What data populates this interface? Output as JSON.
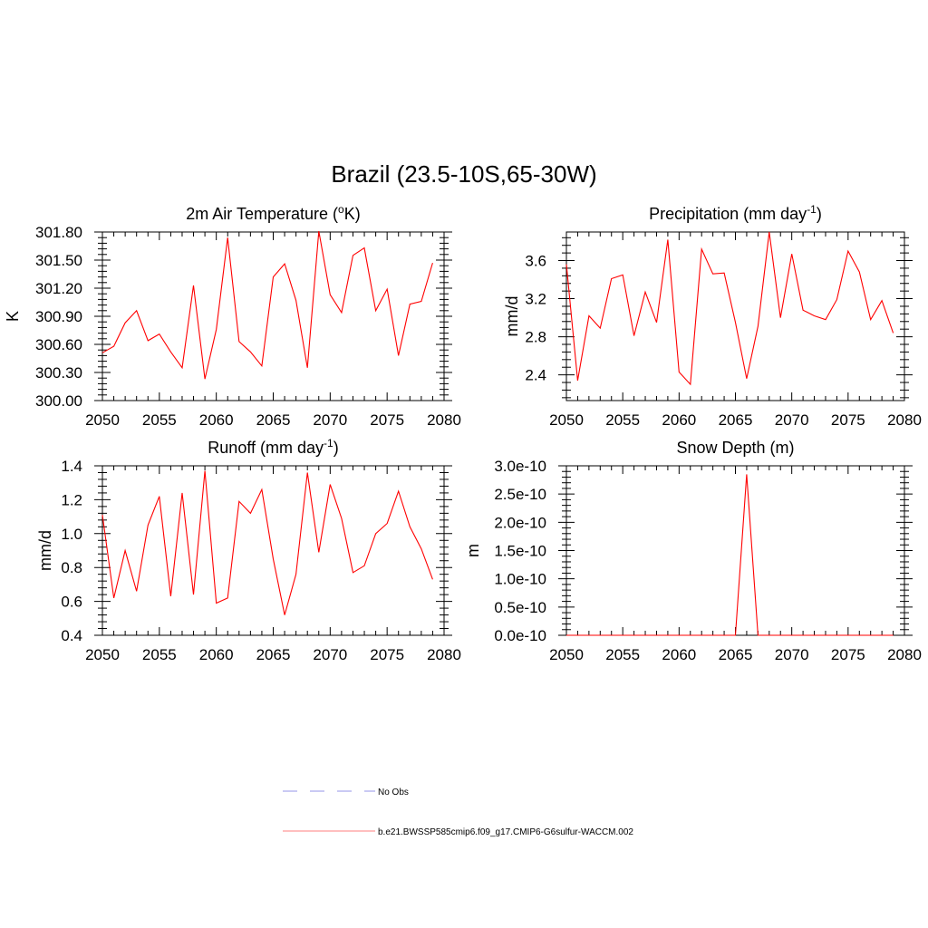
{
  "figure": {
    "title": "Brazil (23.5-10S,65-30W)"
  },
  "legend": {
    "entries": [
      {
        "label": "No Obs",
        "color": "#aaaaee",
        "style": "dashed"
      },
      {
        "label": "b.e21.BWSSP585cmip6.f09_g17.CMIP6-G6sulfur-WACCM.002",
        "color": "#ff9999",
        "style": "solid"
      }
    ]
  },
  "chart_data": [
    {
      "type": "line",
      "title_base": "2m Air Temperature (",
      "title_sup": "o",
      "title_end": "K)",
      "ylabel": "K",
      "xlim": [
        2050,
        2080
      ],
      "ylim": [
        300.0,
        301.8
      ],
      "xticks": [
        2050,
        2055,
        2060,
        2065,
        2070,
        2075,
        2080
      ],
      "yticks": [
        300.0,
        300.3,
        300.6,
        300.9,
        301.2,
        301.5,
        301.8
      ],
      "ytick_labels": [
        "300.00",
        "300.30",
        "300.60",
        "300.90",
        "301.20",
        "301.50",
        "301.80"
      ],
      "series": [
        {
          "color": "#ff0000",
          "x": [
            2050,
            2051,
            2052,
            2053,
            2054,
            2055,
            2056,
            2057,
            2058,
            2059,
            2060,
            2061,
            2062,
            2063,
            2064,
            2065,
            2066,
            2067,
            2068,
            2069,
            2070,
            2071,
            2072,
            2073,
            2074,
            2075,
            2076,
            2077,
            2078,
            2079
          ],
          "y": [
            300.51,
            300.58,
            300.83,
            300.96,
            300.64,
            300.71,
            300.52,
            300.35,
            301.23,
            300.23,
            300.76,
            301.74,
            300.63,
            300.52,
            300.37,
            301.32,
            301.46,
            301.07,
            300.35,
            301.81,
            301.13,
            300.94,
            301.55,
            301.63,
            300.96,
            301.19,
            300.48,
            301.03,
            301.06,
            301.47
          ]
        }
      ]
    },
    {
      "type": "line",
      "title_base": "Precipitation (mm day",
      "title_sup": "-1",
      "title_end": ")",
      "ylabel": "mm/d",
      "xlim": [
        2050,
        2080
      ],
      "ylim": [
        2.13,
        3.9
      ],
      "xticks": [
        2050,
        2055,
        2060,
        2065,
        2070,
        2075,
        2080
      ],
      "yticks": [
        2.4,
        2.8,
        3.2,
        3.6
      ],
      "ytick_labels": [
        "2.4",
        "2.8",
        "3.2",
        "3.6"
      ],
      "series": [
        {
          "color": "#ff0000",
          "x": [
            2050,
            2051,
            2052,
            2053,
            2054,
            2055,
            2056,
            2057,
            2058,
            2059,
            2060,
            2061,
            2062,
            2063,
            2064,
            2065,
            2066,
            2067,
            2068,
            2069,
            2070,
            2071,
            2072,
            2073,
            2074,
            2075,
            2076,
            2077,
            2078,
            2079
          ],
          "y": [
            3.56,
            2.34,
            3.02,
            2.89,
            3.41,
            3.45,
            2.81,
            3.27,
            2.95,
            3.82,
            2.43,
            2.3,
            3.72,
            3.46,
            3.47,
            2.95,
            2.36,
            2.91,
            3.9,
            3.0,
            3.67,
            3.08,
            3.02,
            2.98,
            3.19,
            3.7,
            3.48,
            2.98,
            3.18,
            2.84
          ]
        }
      ]
    },
    {
      "type": "line",
      "title_base": "Runoff (mm day",
      "title_sup": "-1",
      "title_end": ")",
      "ylabel": "mm/d",
      "xlim": [
        2050,
        2080
      ],
      "ylim": [
        0.4,
        1.4
      ],
      "xticks": [
        2050,
        2055,
        2060,
        2065,
        2070,
        2075,
        2080
      ],
      "yticks": [
        0.4,
        0.6,
        0.8,
        1.0,
        1.2,
        1.4
      ],
      "ytick_labels": [
        "0.4",
        "0.6",
        "0.8",
        "1.0",
        "1.2",
        "1.4"
      ],
      "series": [
        {
          "color": "#ff0000",
          "x": [
            2050,
            2051,
            2052,
            2053,
            2054,
            2055,
            2056,
            2057,
            2058,
            2059,
            2060,
            2061,
            2062,
            2063,
            2064,
            2065,
            2066,
            2067,
            2068,
            2069,
            2070,
            2071,
            2072,
            2073,
            2074,
            2075,
            2076,
            2077,
            2078,
            2079
          ],
          "y": [
            1.11,
            0.62,
            0.9,
            0.66,
            1.05,
            1.22,
            0.63,
            1.24,
            0.64,
            1.37,
            0.59,
            0.62,
            1.19,
            1.12,
            1.26,
            0.85,
            0.52,
            0.76,
            1.36,
            0.89,
            1.29,
            1.09,
            0.77,
            0.81,
            1.0,
            1.06,
            1.25,
            1.04,
            0.91,
            0.73
          ]
        }
      ]
    },
    {
      "type": "line",
      "title_base": "Snow Depth (m)",
      "title_sup": "",
      "title_end": "",
      "ylabel": "m",
      "xlim": [
        2050,
        2080
      ],
      "ylim": [
        0,
        3e-10
      ],
      "xticks": [
        2050,
        2055,
        2060,
        2065,
        2070,
        2075,
        2080
      ],
      "yticks": [
        0,
        5e-11,
        1e-10,
        1.5e-10,
        2e-10,
        2.5e-10,
        3e-10
      ],
      "ytick_labels": [
        "0.0e-10",
        "0.5e-10",
        "1.0e-10",
        "1.5e-10",
        "2.0e-10",
        "2.5e-10",
        "3.0e-10"
      ],
      "series": [
        {
          "color": "#ff0000",
          "x": [
            2050,
            2051,
            2052,
            2053,
            2054,
            2055,
            2056,
            2057,
            2058,
            2059,
            2060,
            2061,
            2062,
            2063,
            2064,
            2065,
            2066,
            2067,
            2068,
            2069,
            2070,
            2071,
            2072,
            2073,
            2074,
            2075,
            2076,
            2077,
            2078,
            2079
          ],
          "y": [
            0,
            0,
            0,
            0,
            0,
            0,
            0,
            0,
            0,
            0,
            0,
            0,
            0,
            0,
            0,
            0,
            2.85e-10,
            0,
            0,
            0,
            0,
            0,
            0,
            0,
            0,
            0,
            0,
            0,
            0,
            0
          ]
        }
      ]
    }
  ]
}
